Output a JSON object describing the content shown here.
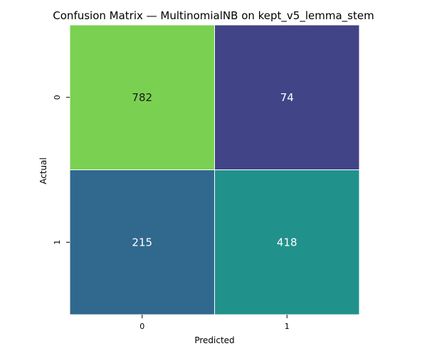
{
  "chart_data": {
    "type": "heatmap",
    "title": "Confusion Matrix — MultinomialNB on kept_v5_lemma_stem",
    "xlabel": "Predicted",
    "ylabel": "Actual",
    "x_categories": [
      "0",
      "1"
    ],
    "y_categories": [
      "0",
      "1"
    ],
    "values": [
      [
        782,
        74
      ],
      [
        215,
        418
      ]
    ],
    "colormap": "viridis",
    "colorbar": false,
    "grid": false,
    "cell_colors": [
      [
        "#7ad151",
        "#414487"
      ],
      [
        "#31688e",
        "#21918c"
      ]
    ],
    "text_colors": [
      [
        "#1a1a1a",
        "#ffffff"
      ],
      [
        "#ffffff",
        "#ffffff"
      ]
    ],
    "cell_border_color": "#ffffff"
  }
}
